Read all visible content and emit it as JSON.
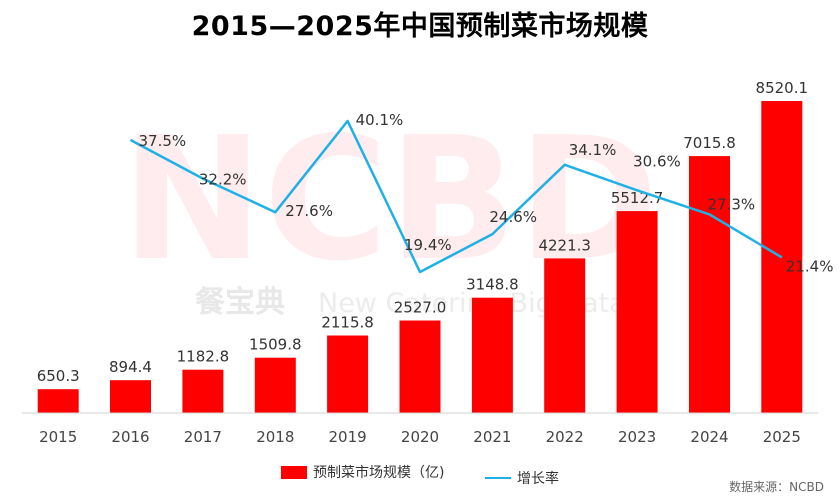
{
  "title": "2015—2025年中国预制菜市场规模",
  "chart_data": {
    "type": "bar",
    "categories": [
      "2015",
      "2016",
      "2017",
      "2018",
      "2019",
      "2020",
      "2021",
      "2022",
      "2023",
      "2024",
      "2025"
    ],
    "series": [
      {
        "name": "预制菜市场规模（亿)",
        "type": "bar",
        "color": "#ff0000",
        "values": [
          650.3,
          894.4,
          1182.8,
          1509.8,
          2115.8,
          2527.0,
          3148.8,
          4221.3,
          5512.7,
          7015.8,
          8520.1
        ],
        "labels": [
          "650.3",
          "894.4",
          "1182.8",
          "1509.8",
          "2115.8",
          "2527.0",
          "3148.8",
          "4221.3",
          "5512.7",
          "7015.8",
          "8520.1"
        ]
      },
      {
        "name": "增长率",
        "type": "line",
        "color": "#1fb1e6",
        "x": [
          "2016",
          "2017",
          "2018",
          "2019",
          "2020",
          "2021",
          "2022",
          "2023",
          "2024",
          "2025"
        ],
        "values": [
          37.5,
          32.2,
          27.6,
          40.1,
          19.4,
          24.6,
          34.1,
          30.6,
          27.3,
          21.4
        ],
        "labels": [
          "37.5%",
          "32.2%",
          "27.6%",
          "40.1%",
          "19.4%",
          "24.6%",
          "34.1%",
          "30.6%",
          "27.3%",
          "21.4%"
        ]
      }
    ],
    "legend_position": "bottom",
    "grid": false
  },
  "watermark": {
    "brand": "NCBD",
    "cn": "餐宝典",
    "en": "New Catering Big Data"
  },
  "source": "数据来源：NCBD"
}
